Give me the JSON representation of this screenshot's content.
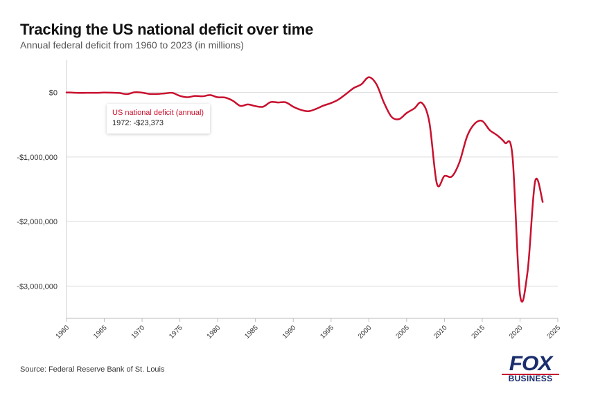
{
  "chart_data": {
    "type": "line",
    "title": "Tracking the US national deficit over time",
    "subtitle": "Annual federal deficit from 1960 to 2023 (in millions)",
    "xlabel": "",
    "ylabel": "",
    "xlim": [
      1960,
      2025
    ],
    "ylim": [
      -3500000,
      500000
    ],
    "x_ticks": [
      "1960",
      "1965",
      "1970",
      "1975",
      "1980",
      "1985",
      "1990",
      "1995",
      "2000",
      "2005",
      "2010",
      "2015",
      "2020",
      "2025"
    ],
    "y_ticks": [
      {
        "value": 0,
        "label": "$0"
      },
      {
        "value": -1000000,
        "label": "-$1,000,000"
      },
      {
        "value": -2000000,
        "label": "-$2,000,000"
      },
      {
        "value": -3000000,
        "label": "-$3,000,000"
      }
    ],
    "color": "#c8102e",
    "series": [
      {
        "name": "US national deficit (annual)",
        "x": [
          1960,
          1961,
          1962,
          1963,
          1964,
          1965,
          1966,
          1967,
          1968,
          1969,
          1970,
          1971,
          1972,
          1973,
          1974,
          1975,
          1976,
          1977,
          1978,
          1979,
          1980,
          1981,
          1982,
          1983,
          1984,
          1985,
          1986,
          1987,
          1988,
          1989,
          1990,
          1991,
          1992,
          1993,
          1994,
          1995,
          1996,
          1997,
          1998,
          1999,
          2000,
          2001,
          2002,
          2003,
          2004,
          2005,
          2006,
          2007,
          2008,
          2009,
          2010,
          2011,
          2012,
          2013,
          2014,
          2015,
          2016,
          2017,
          2018,
          2019,
          2020,
          2021,
          2022,
          2023
        ],
        "values": [
          301,
          -3335,
          -7146,
          -4756,
          -5915,
          -1411,
          -3698,
          -8643,
          -25161,
          3242,
          -2842,
          -23033,
          -23373,
          -14908,
          -6135,
          -53242,
          -73732,
          -53659,
          -59185,
          -40726,
          -73830,
          -78968,
          -127977,
          -207802,
          -185367,
          -212308,
          -221227,
          -149730,
          -155178,
          -152639,
          -221036,
          -269238,
          -290321,
          -255051,
          -203186,
          -163952,
          -107431,
          -21884,
          69270,
          125610,
          236241,
          128236,
          -157758,
          -377585,
          -412727,
          -318346,
          -248181,
          -160701,
          -458553,
          -1412688,
          -1294373,
          -1299599,
          -1076573,
          -679775,
          -484602,
          -441960,
          -584651,
          -665446,
          -779137,
          -983587,
          -3131917,
          -2775311,
          -1375905,
          -1695000
        ]
      }
    ],
    "tooltip": {
      "series": "US national deficit (annual)",
      "text": "1972: -$23,373"
    }
  },
  "footer": {
    "source": "Source: Federal Reserve Bank of St. Louis",
    "logo_top": "FOX",
    "logo_bottom": "BUSINESS"
  }
}
